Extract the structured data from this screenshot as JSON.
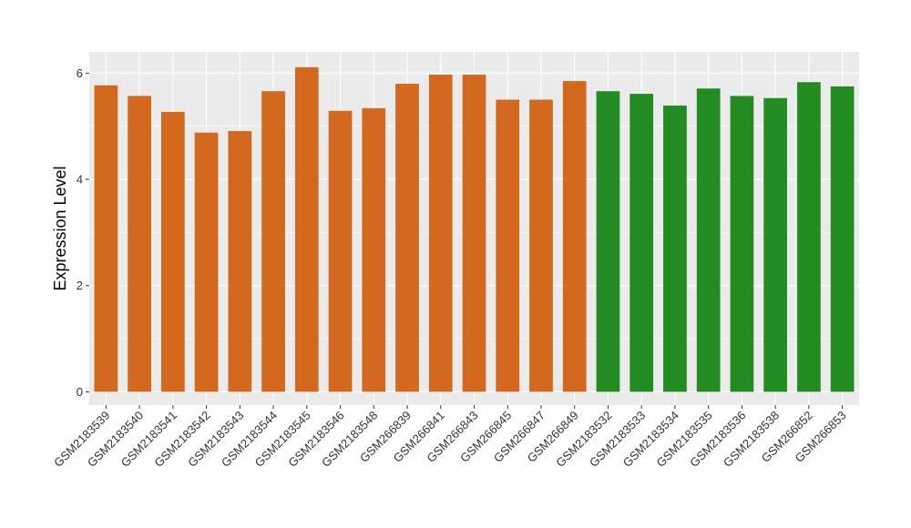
{
  "chart_data": {
    "type": "bar",
    "title": "",
    "xlabel": "",
    "ylabel": "Expression Level",
    "ylim": [
      -0.25,
      6.4
    ],
    "yticks": [
      0,
      2,
      4,
      6
    ],
    "grid": true,
    "legend": "none",
    "panel_background": "#ebebeb",
    "categories": [
      "GSM2183539",
      "GSM2183540",
      "GSM2183541",
      "GSM2183542",
      "GSM2183543",
      "GSM2183544",
      "GSM2183545",
      "GSM2183546",
      "GSM2183548",
      "GSM266839",
      "GSM266841",
      "GSM266843",
      "GSM266845",
      "GSM266847",
      "GSM266849",
      "GSM2183532",
      "GSM2183533",
      "GSM2183534",
      "GSM2183535",
      "GSM2183536",
      "GSM2183538",
      "GSM266852",
      "GSM266853"
    ],
    "values": [
      5.77,
      5.57,
      5.27,
      4.88,
      4.91,
      5.66,
      6.11,
      5.29,
      5.34,
      5.8,
      5.97,
      5.97,
      5.5,
      5.5,
      5.85,
      5.66,
      5.61,
      5.39,
      5.71,
      5.57,
      5.53,
      5.83,
      5.75
    ],
    "colors": [
      "#d2691e",
      "#d2691e",
      "#d2691e",
      "#d2691e",
      "#d2691e",
      "#d2691e",
      "#d2691e",
      "#d2691e",
      "#d2691e",
      "#d2691e",
      "#d2691e",
      "#d2691e",
      "#d2691e",
      "#d2691e",
      "#d2691e",
      "#228b22",
      "#228b22",
      "#228b22",
      "#228b22",
      "#228b22",
      "#228b22",
      "#228b22",
      "#228b22"
    ]
  }
}
